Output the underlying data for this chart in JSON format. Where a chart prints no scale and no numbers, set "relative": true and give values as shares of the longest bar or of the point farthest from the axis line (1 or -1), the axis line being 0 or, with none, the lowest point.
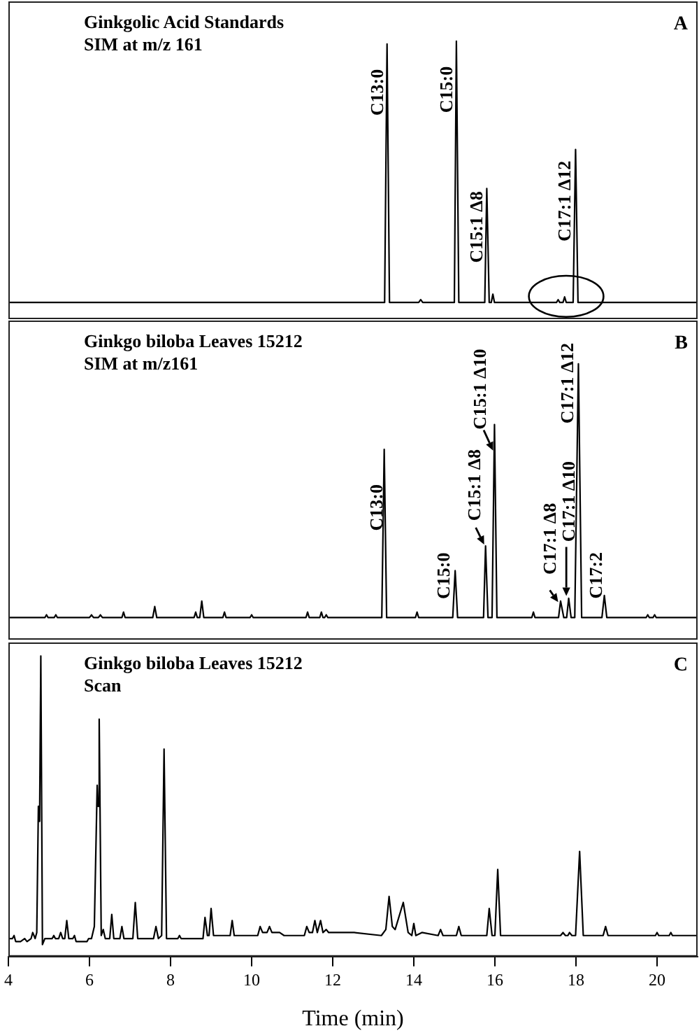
{
  "chart_data": [
    {
      "type": "line",
      "title": "Ginkgolic Acid Standards",
      "subtitle": "SIM at m/z 161",
      "relative": true,
      "tick_labels": false,
      "xlim": [
        4,
        21
      ],
      "color": "#000000",
      "x": [
        4,
        13.28,
        13.34,
        13.4,
        14.12,
        14.17,
        14.22,
        15,
        15.05,
        15.11,
        15.75,
        15.8,
        15.86,
        15.91,
        15.95,
        15.99,
        17.52,
        17.56,
        17.6,
        17.68,
        17.72,
        17.76,
        17.93,
        17.99,
        18.05,
        21
      ],
      "values": [
        0.06,
        0.06,
        0.99,
        0.06,
        0.06,
        0.07,
        0.06,
        0.06,
        1,
        0.06,
        0.06,
        0.47,
        0.06,
        0.06,
        0.09,
        0.06,
        0.06,
        0.07,
        0.06,
        0.06,
        0.08,
        0.06,
        0.06,
        0.61,
        0.06,
        0.06
      ],
      "annotations": [
        {
          "text": "C13:0",
          "x": 13.34,
          "y": 0.99
        },
        {
          "text": "C15:0",
          "x": 15.05,
          "y": 1
        },
        {
          "text": "C15:1 Δ8",
          "x": 15.8,
          "y": 0.47
        },
        {
          "text": "C17:1 Δ12",
          "x": 17.99,
          "y": 0.61
        },
        "A"
      ]
    },
    {
      "type": "line",
      "title": "Ginkgo biloba Leaves 15212",
      "subtitle": "SIM at m/z161",
      "relative": true,
      "tick_labels": false,
      "xlim": [
        4,
        21
      ],
      "color": "#000000",
      "x": [
        4,
        4.9,
        4.94,
        4.98,
        5.13,
        5.17,
        5.21,
        6,
        6.05,
        6.1,
        6.22,
        6.27,
        6.32,
        6.8,
        6.84,
        6.88,
        7.56,
        7.61,
        7.66,
        8.58,
        8.62,
        8.66,
        8.72,
        8.77,
        8.82,
        9.29,
        9.33,
        9.37,
        9.96,
        10,
        10.04,
        11.34,
        11.38,
        11.42,
        11.68,
        11.72,
        11.76,
        11.8,
        11.84,
        11.88,
        13.21,
        13.27,
        13.33,
        14.04,
        14.08,
        14.12,
        14.96,
        15.02,
        15.08,
        15.72,
        15.77,
        15.83,
        15.93,
        15.99,
        16.05,
        16.91,
        16.95,
        16.99,
        17.57,
        17.62,
        17.7,
        17.77,
        17.82,
        17.88,
        17.97,
        18.06,
        18.14,
        18.64,
        18.7,
        18.76,
        19.73,
        19.77,
        19.81,
        19.9,
        19.94,
        19.98,
        21
      ],
      "values": [
        0.08,
        0.08,
        0.09,
        0.08,
        0.08,
        0.09,
        0.08,
        0.08,
        0.09,
        0.08,
        0.08,
        0.09,
        0.08,
        0.08,
        0.1,
        0.08,
        0.08,
        0.12,
        0.08,
        0.08,
        0.1,
        0.08,
        0.08,
        0.14,
        0.08,
        0.08,
        0.1,
        0.08,
        0.08,
        0.09,
        0.08,
        0.08,
        0.1,
        0.08,
        0.08,
        0.1,
        0.08,
        0.08,
        0.09,
        0.08,
        0.08,
        0.69,
        0.08,
        0.08,
        0.1,
        0.08,
        0.08,
        0.25,
        0.08,
        0.08,
        0.34,
        0.08,
        0.08,
        0.78,
        0.08,
        0.08,
        0.1,
        0.08,
        0.08,
        0.14,
        0.08,
        0.08,
        0.15,
        0.08,
        0.08,
        1,
        0.08,
        0.08,
        0.16,
        0.08,
        0.08,
        0.09,
        0.08,
        0.08,
        0.09,
        0.08,
        0.08
      ],
      "annotations": [
        {
          "text": "C13:0",
          "x": 13.27,
          "y": 0.69
        },
        {
          "text": "C15:0",
          "x": 15.02,
          "y": 0.25
        },
        {
          "text": "C15:1 Δ8",
          "x": 15.77,
          "y": 0.34
        },
        {
          "text": "C15:1 Δ10",
          "x": 15.99,
          "y": 0.78
        },
        {
          "text": "C17:1 Δ8",
          "x": 17.62,
          "y": 0.14
        },
        {
          "text": "C17:1 Δ10",
          "x": 17.82,
          "y": 0.15
        },
        {
          "text": "C17:1 Δ12",
          "x": 18.06,
          "y": 1
        },
        {
          "text": "C17:2",
          "x": 18.7,
          "y": 0.16
        },
        "B"
      ]
    },
    {
      "type": "line",
      "title": "Ginkgo biloba Leaves 15212",
      "subtitle": "Scan",
      "relative": true,
      "tick_labels": "x",
      "xlabel": "Time (min)",
      "xlim": [
        4,
        21
      ],
      "xticks": [
        4,
        6,
        8,
        10,
        12,
        14,
        16,
        18,
        20
      ],
      "color": "#000000",
      "x": [
        4,
        4.1,
        4.14,
        4.18,
        4.3,
        4.4,
        4.46,
        4.56,
        4.6,
        4.66,
        4.7,
        4.74,
        4.77,
        4.8,
        4.84,
        4.9,
        5.08,
        5.12,
        5.16,
        5.24,
        5.29,
        5.34,
        5.39,
        5.44,
        5.49,
        5.59,
        5.63,
        5.67,
        5.94,
        5.98,
        6.05,
        6.12,
        6.19,
        6.21,
        6.24,
        6.29,
        6.34,
        6.39,
        6.5,
        6.55,
        6.6,
        6.75,
        6.8,
        6.85,
        7.07,
        7.13,
        7.19,
        7.58,
        7.64,
        7.7,
        7.78,
        7.84,
        7.9,
        8.18,
        8.22,
        8.26,
        8.8,
        8.85,
        8.91,
        8.95,
        9,
        9.06,
        9.47,
        9.52,
        9.57,
        9.83,
        10.15,
        10.21,
        10.27,
        10.38,
        10.44,
        10.5,
        10.69,
        10.8,
        11.3,
        11.36,
        11.42,
        11.5,
        11.56,
        11.62,
        11.7,
        11.76,
        11.84,
        11.9,
        12.53,
        13.2,
        13.31,
        13.39,
        13.47,
        13.54,
        13.74,
        13.86,
        13.95,
        14,
        14.05,
        14.2,
        14.6,
        14.66,
        14.72,
        15.05,
        15.11,
        15.17,
        15.8,
        15.86,
        15.93,
        16,
        16.07,
        16.14,
        17,
        17.62,
        17.68,
        17.74,
        17.8,
        17.84,
        17.9,
        17.99,
        18.09,
        18.18,
        18.67,
        18.73,
        18.79,
        19.96,
        20,
        20.04,
        20.3,
        20.34,
        20.38,
        21
      ],
      "values": [
        0.06,
        0.06,
        0.07,
        0.05,
        0.05,
        0.06,
        0.05,
        0.06,
        0.08,
        0.06,
        0.08,
        0.5,
        0.45,
        1,
        0.04,
        0.06,
        0.06,
        0.07,
        0.06,
        0.06,
        0.08,
        0.06,
        0.06,
        0.12,
        0.06,
        0.06,
        0.07,
        0.05,
        0.05,
        0.06,
        0.06,
        0.1,
        0.57,
        0.5,
        0.79,
        0.07,
        0.09,
        0.06,
        0.06,
        0.14,
        0.06,
        0.06,
        0.1,
        0.06,
        0.06,
        0.18,
        0.06,
        0.06,
        0.1,
        0.06,
        0.07,
        0.69,
        0.06,
        0.06,
        0.07,
        0.06,
        0.06,
        0.13,
        0.07,
        0.07,
        0.16,
        0.07,
        0.07,
        0.12,
        0.07,
        0.07,
        0.07,
        0.1,
        0.08,
        0.08,
        0.1,
        0.08,
        0.08,
        0.07,
        0.07,
        0.1,
        0.08,
        0.08,
        0.12,
        0.08,
        0.12,
        0.08,
        0.09,
        0.08,
        0.08,
        0.07,
        0.09,
        0.2,
        0.1,
        0.09,
        0.18,
        0.08,
        0.07,
        0.11,
        0.07,
        0.08,
        0.07,
        0.09,
        0.07,
        0.07,
        0.1,
        0.07,
        0.07,
        0.16,
        0.07,
        0.07,
        0.29,
        0.07,
        0.07,
        0.07,
        0.08,
        0.07,
        0.07,
        0.08,
        0.07,
        0.07,
        0.35,
        0.07,
        0.07,
        0.1,
        0.07,
        0.07,
        0.08,
        0.07,
        0.07,
        0.08,
        0.07,
        0.07
      ],
      "annotations": [
        "C"
      ]
    }
  ]
}
